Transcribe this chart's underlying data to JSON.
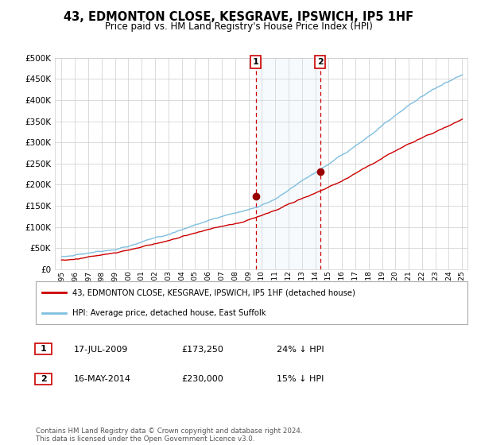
{
  "title": "43, EDMONTON CLOSE, KESGRAVE, IPSWICH, IP5 1HF",
  "subtitle": "Price paid vs. HM Land Registry's House Price Index (HPI)",
  "legend_line1": "43, EDMONTON CLOSE, KESGRAVE, IPSWICH, IP5 1HF (detached house)",
  "legend_line2": "HPI: Average price, detached house, East Suffolk",
  "transaction1_label": "1",
  "transaction1_date": "17-JUL-2009",
  "transaction1_price": "£173,250",
  "transaction1_hpi": "24% ↓ HPI",
  "transaction1_year": 2009.54,
  "transaction1_value": 173250,
  "transaction2_label": "2",
  "transaction2_date": "16-MAY-2014",
  "transaction2_price": "£230,000",
  "transaction2_hpi": "15% ↓ HPI",
  "transaction2_year": 2014.37,
  "transaction2_value": 230000,
  "footer": "Contains HM Land Registry data © Crown copyright and database right 2024.\nThis data is licensed under the Open Government Licence v3.0.",
  "hpi_color": "#7fbfdf",
  "price_color": "#cc0000",
  "marker_color": "#990000",
  "shade_color": "#daeaf5",
  "dashed_color": "#cc0000",
  "ylim": [
    0,
    500000
  ],
  "yticks": [
    0,
    50000,
    100000,
    150000,
    200000,
    250000,
    300000,
    350000,
    400000,
    450000,
    500000
  ],
  "xstart": 1995,
  "xend": 2025
}
